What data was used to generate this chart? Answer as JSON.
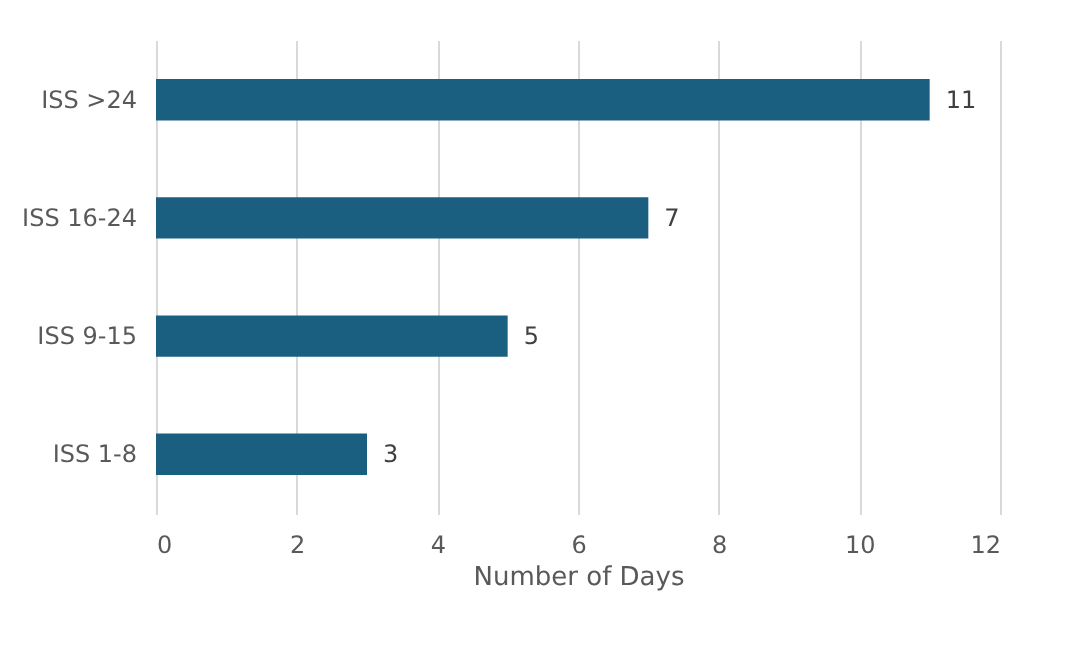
{
  "chart_data": {
    "type": "bar",
    "orientation": "horizontal",
    "xlabel": "Number of Days",
    "categories": [
      "ISS >24",
      "ISS 16-24",
      "ISS 9-15",
      "ISS 1-8"
    ],
    "values": [
      11,
      7,
      5,
      3
    ],
    "color": "#1b5f80",
    "xlim": [
      0,
      12
    ],
    "xticks": [
      0,
      2,
      4,
      6,
      8,
      10,
      12
    ],
    "grid": "x",
    "data_labels": true
  }
}
